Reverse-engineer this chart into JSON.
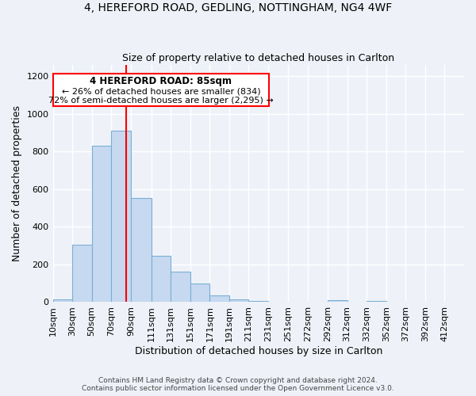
{
  "title_line1": "4, HEREFORD ROAD, GEDLING, NOTTINGHAM, NG4 4WF",
  "title_line2": "Size of property relative to detached houses in Carlton",
  "xlabel": "Distribution of detached houses by size in Carlton",
  "ylabel": "Number of detached properties",
  "bar_labels": [
    "10sqm",
    "30sqm",
    "50sqm",
    "70sqm",
    "90sqm",
    "111sqm",
    "131sqm",
    "151sqm",
    "171sqm",
    "191sqm",
    "211sqm",
    "231sqm",
    "251sqm",
    "272sqm",
    "292sqm",
    "312sqm",
    "332sqm",
    "352sqm",
    "372sqm",
    "392sqm",
    "412sqm"
  ],
  "bar_values": [
    15,
    305,
    830,
    910,
    555,
    245,
    160,
    100,
    35,
    15,
    5,
    0,
    0,
    0,
    10,
    0,
    5,
    0,
    0,
    0,
    0
  ],
  "bar_color": "#c6d9f0",
  "bar_edge_color": "#7bafd4",
  "annotation_line1": "4 HEREFORD ROAD: 85sqm",
  "annotation_line2": "← 26% of detached houses are smaller (834)",
  "annotation_line3": "72% of semi-detached houses are larger (2,295) →",
  "property_line_x": 85,
  "ylim": [
    0,
    1260
  ],
  "yticks": [
    0,
    200,
    400,
    600,
    800,
    1000,
    1200
  ],
  "footnote1": "Contains HM Land Registry data © Crown copyright and database right 2024.",
  "footnote2": "Contains public sector information licensed under the Open Government Licence v3.0.",
  "bg_color": "#eef2f8",
  "plot_bg_color": "#eef2f8"
}
